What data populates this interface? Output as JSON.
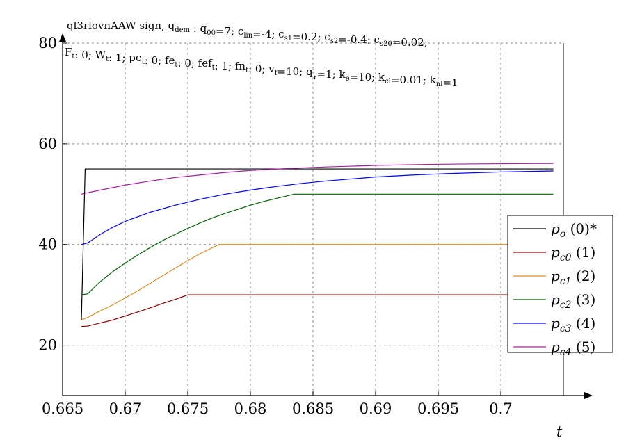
{
  "header": {
    "line1": "ql3rlovnAAW sign, qₓ",
    "line1_parts": [
      {
        "t": "ql3rlovnAAW sign, q",
        "sub": "dem"
      },
      {
        "t": " : q",
        "sub": "00"
      },
      {
        "t": "=7; c",
        "sub": "lin"
      },
      {
        "t": "=-4; c",
        "sub": "s1"
      },
      {
        "t": "=0.2; c",
        "sub": "s2"
      },
      {
        "t": "=-0.4; c",
        "sub": "s20"
      },
      {
        "t": "=0.02;",
        "sub": ""
      }
    ],
    "line2_parts": [
      {
        "t": "F",
        "sub": "t"
      },
      {
        "t": ": 0; W",
        "sub": "t"
      },
      {
        "t": ": 1; pe",
        "sub": "t"
      },
      {
        "t": ": 0; fe",
        "sub": "t"
      },
      {
        "t": ": 0; fef",
        "sub": "t"
      },
      {
        "t": ": 1; fn",
        "sub": "t"
      },
      {
        "t": ": 0; v",
        "sub": "f"
      },
      {
        "t": "=10; q",
        "sub": "γ"
      },
      {
        "t": "=1; k",
        "sub": "e"
      },
      {
        "t": "=10; k",
        "sub": "cl"
      },
      {
        "t": "=0.01; k",
        "sub": "nl"
      },
      {
        "t": "=1",
        "sub": ""
      }
    ]
  },
  "chart_data": {
    "type": "line",
    "xlabel": "t",
    "ylabel": "",
    "xlim": [
      0.665,
      0.705
    ],
    "ylim": [
      10,
      80
    ],
    "xticks": [
      0.665,
      0.67,
      0.675,
      0.68,
      0.685,
      0.69,
      0.695,
      0.7
    ],
    "xtick_labels": [
      "0.665",
      "0.67",
      "0.675",
      "0.68",
      "0.685",
      "0.69",
      "0.695",
      "0.7"
    ],
    "yticks": [
      20,
      40,
      60,
      80
    ],
    "ytick_labels": [
      "20",
      "40",
      "60",
      "80"
    ],
    "grid": true,
    "legend_position": "right",
    "series": [
      {
        "name": "p_o (0)*",
        "label_main": "p",
        "label_sub": "o",
        "label_rest": " (0)*",
        "color": "#000000",
        "points": [
          [
            0.6665,
            25
          ],
          [
            0.6668,
            55
          ],
          [
            0.7042,
            55
          ]
        ]
      },
      {
        "name": "p_c0 (1)",
        "label_main": "p",
        "label_sub": "c0",
        "label_rest": " (1)",
        "color": "#8b0000",
        "points": [
          [
            0.6665,
            23.7
          ],
          [
            0.667,
            23.8
          ],
          [
            0.668,
            24.4
          ],
          [
            0.669,
            25.0
          ],
          [
            0.67,
            25.8
          ],
          [
            0.671,
            26.6
          ],
          [
            0.672,
            27.4
          ],
          [
            0.673,
            28.3
          ],
          [
            0.674,
            29.1
          ],
          [
            0.675,
            30
          ],
          [
            0.7042,
            30
          ]
        ]
      },
      {
        "name": "p_c1 (2)",
        "label_main": "p",
        "label_sub": "c1",
        "label_rest": " (2)",
        "color": "#e08a1e",
        "points": [
          [
            0.6665,
            25
          ],
          [
            0.667,
            25.5
          ],
          [
            0.668,
            26.8
          ],
          [
            0.669,
            28.0
          ],
          [
            0.67,
            29.4
          ],
          [
            0.671,
            30.8
          ],
          [
            0.672,
            32.3
          ],
          [
            0.673,
            33.8
          ],
          [
            0.674,
            35.3
          ],
          [
            0.675,
            36.8
          ],
          [
            0.676,
            38.2
          ],
          [
            0.6775,
            40
          ],
          [
            0.7042,
            40
          ]
        ]
      },
      {
        "name": "p_c2 (3)",
        "label_main": "p",
        "label_sub": "c2",
        "label_rest": " (3)",
        "color": "#006400",
        "points": [
          [
            0.6665,
            30
          ],
          [
            0.667,
            30.2
          ],
          [
            0.668,
            32.6
          ],
          [
            0.669,
            34.6
          ],
          [
            0.67,
            36.3
          ],
          [
            0.671,
            37.9
          ],
          [
            0.672,
            39.4
          ],
          [
            0.673,
            40.8
          ],
          [
            0.674,
            42.0
          ],
          [
            0.675,
            43.2
          ],
          [
            0.676,
            44.3
          ],
          [
            0.677,
            45.3
          ],
          [
            0.678,
            46.2
          ],
          [
            0.679,
            47.0
          ],
          [
            0.68,
            47.8
          ],
          [
            0.681,
            48.5
          ],
          [
            0.682,
            49.1
          ],
          [
            0.6835,
            50
          ],
          [
            0.7042,
            50
          ]
        ]
      },
      {
        "name": "p_c3 (4)",
        "label_main": "p",
        "label_sub": "c3",
        "label_rest": " (4)",
        "color": "#0000ff",
        "points": [
          [
            0.6665,
            40
          ],
          [
            0.667,
            40.3
          ],
          [
            0.668,
            42.0
          ],
          [
            0.669,
            43.4
          ],
          [
            0.67,
            44.6
          ],
          [
            0.672,
            46.4
          ],
          [
            0.674,
            47.8
          ],
          [
            0.676,
            49.0
          ],
          [
            0.678,
            50.0
          ],
          [
            0.68,
            50.8
          ],
          [
            0.682,
            51.5
          ],
          [
            0.684,
            52.1
          ],
          [
            0.686,
            52.6
          ],
          [
            0.688,
            53.0
          ],
          [
            0.69,
            53.4
          ],
          [
            0.693,
            53.8
          ],
          [
            0.696,
            54.1
          ],
          [
            0.7,
            54.4
          ],
          [
            0.7042,
            54.6
          ]
        ]
      },
      {
        "name": "p_c4 (5)",
        "label_main": "p",
        "label_sub": "c4",
        "label_rest": " (5)",
        "color": "#a020a0",
        "points": [
          [
            0.6665,
            50
          ],
          [
            0.668,
            50.8
          ],
          [
            0.67,
            51.8
          ],
          [
            0.672,
            52.6
          ],
          [
            0.674,
            53.3
          ],
          [
            0.676,
            53.8
          ],
          [
            0.678,
            54.3
          ],
          [
            0.68,
            54.7
          ],
          [
            0.683,
            55.1
          ],
          [
            0.686,
            55.4
          ],
          [
            0.69,
            55.7
          ],
          [
            0.694,
            55.9
          ],
          [
            0.698,
            56.0
          ],
          [
            0.7042,
            56.1
          ]
        ]
      }
    ]
  }
}
